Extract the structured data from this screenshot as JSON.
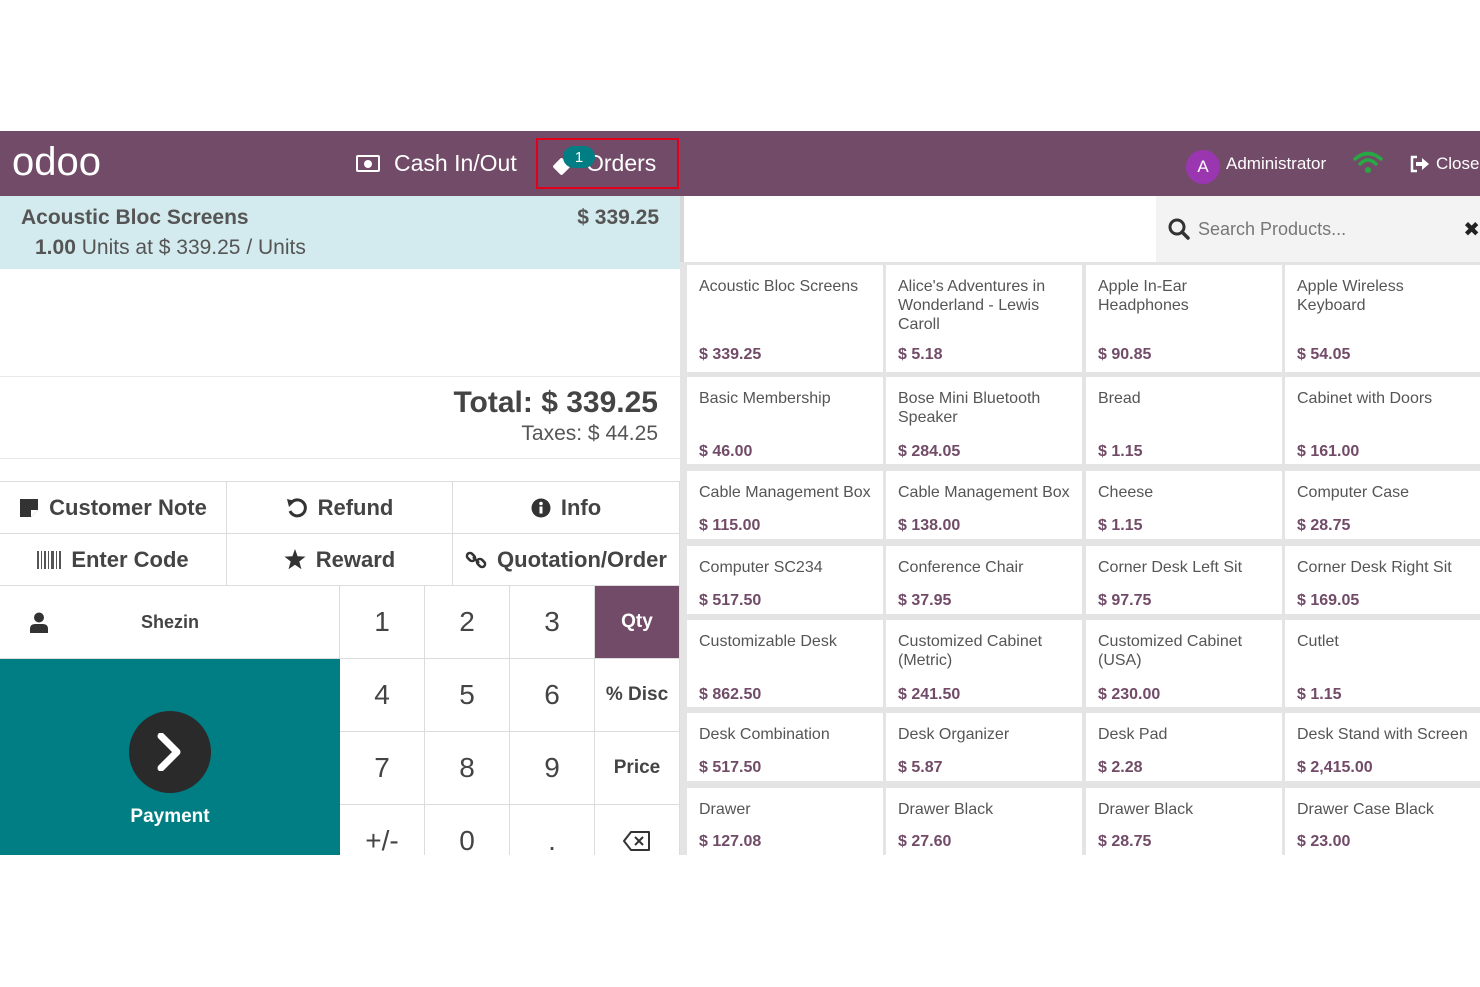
{
  "header": {
    "logo_text": "odoo",
    "cash_label": "Cash In/Out",
    "orders_label": "Orders",
    "orders_count": "1",
    "user_initial": "A",
    "user_name": "Administrator",
    "close_label": "Close",
    "colors": {
      "bar": "#714b67",
      "badge": "#017e84",
      "avatar": "#9b36b1",
      "wifi": "#28a745",
      "highlight_border": "#e0001b"
    }
  },
  "order": {
    "line": {
      "name": "Acoustic Bloc Screens",
      "price": "$ 339.25",
      "qty": "1.00",
      "unit_info": "Units at $ 339.25 / Units"
    },
    "total": "Total: $ 339.25",
    "taxes": "Taxes: $ 44.25"
  },
  "controls": {
    "customer_note": "Customer Note",
    "refund": "Refund",
    "info": "Info",
    "enter_code": "Enter Code",
    "reward": "Reward",
    "quotation": "Quotation/Order"
  },
  "customer": {
    "name": "Shezin"
  },
  "payment": {
    "label": "Payment"
  },
  "numpad": {
    "keys": [
      "1",
      "2",
      "3",
      "4",
      "5",
      "6",
      "7",
      "8",
      "9",
      "+/-",
      "0",
      "."
    ],
    "modes": [
      "Qty",
      "% Disc",
      "Price"
    ],
    "active_mode": "Qty"
  },
  "search": {
    "placeholder": "Search Products..."
  },
  "products": [
    {
      "name": "Acoustic Bloc Screens",
      "price": "$ 339.25"
    },
    {
      "name": "Alice's Adventures in Wonderland - Lewis Caroll",
      "price": "$ 5.18"
    },
    {
      "name": "Apple In-Ear Headphones",
      "price": "$ 90.85"
    },
    {
      "name": "Apple Wireless Keyboard",
      "price": "$ 54.05"
    },
    {
      "name": "Basic Membership",
      "price": "$ 46.00"
    },
    {
      "name": "Bose Mini Bluetooth Speaker",
      "price": "$ 284.05"
    },
    {
      "name": "Bread",
      "price": "$ 1.15"
    },
    {
      "name": "Cabinet with Doors",
      "price": "$ 161.00"
    },
    {
      "name": "Cable Management Box",
      "price": "$ 115.00"
    },
    {
      "name": "Cable Management Box",
      "price": "$ 138.00"
    },
    {
      "name": "Cheese",
      "price": "$ 1.15"
    },
    {
      "name": "Computer Case",
      "price": "$ 28.75"
    },
    {
      "name": "Computer SC234",
      "price": "$ 517.50"
    },
    {
      "name": "Conference Chair",
      "price": "$ 37.95"
    },
    {
      "name": "Corner Desk Left Sit",
      "price": "$ 97.75"
    },
    {
      "name": "Corner Desk Right Sit",
      "price": "$ 169.05"
    },
    {
      "name": "Customizable Desk",
      "price": "$ 862.50"
    },
    {
      "name": "Customized Cabinet (Metric)",
      "price": "$ 241.50"
    },
    {
      "name": "Customized Cabinet (USA)",
      "price": "$ 230.00"
    },
    {
      "name": "Cutlet",
      "price": "$ 1.15"
    },
    {
      "name": "Desk Combination",
      "price": "$ 517.50"
    },
    {
      "name": "Desk Organizer",
      "price": "$ 5.87"
    },
    {
      "name": "Desk Pad",
      "price": "$ 2.28"
    },
    {
      "name": "Desk Stand with Screen",
      "price": "$ 2,415.00"
    },
    {
      "name": "Drawer",
      "price": "$ 127.08"
    },
    {
      "name": "Drawer Black",
      "price": "$ 27.60"
    },
    {
      "name": "Drawer Black",
      "price": "$ 28.75"
    },
    {
      "name": "Drawer Case Black",
      "price": "$ 23.00"
    }
  ]
}
